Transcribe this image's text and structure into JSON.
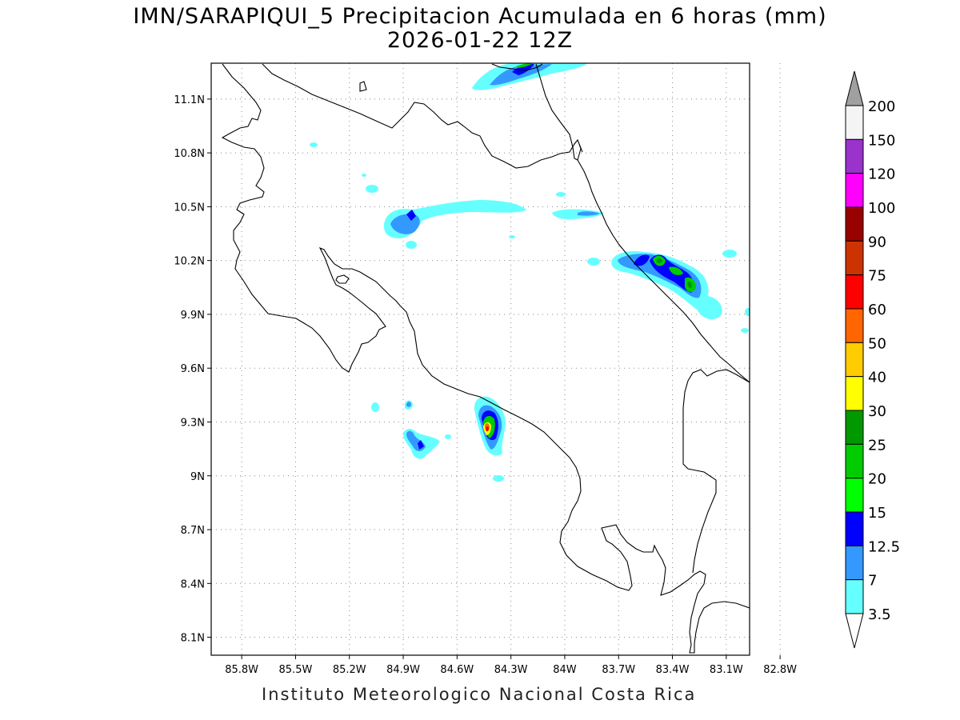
{
  "title": {
    "line1": "IMN/SARAPIQUI_5 Precipitacion Acumulada en 6 horas (mm)",
    "line2": "2026-01-22 12Z"
  },
  "footer": "Instituto Meteorologico Nacional Costa Rica",
  "axes": {
    "lon_labels": [
      "85.8W",
      "85.5W",
      "85.2W",
      "84.9W",
      "84.6W",
      "84.3W",
      "84W",
      "83.7W",
      "83.4W",
      "83.1W",
      "82.8W"
    ],
    "lat_labels": [
      "11.1N",
      "10.8N",
      "10.5N",
      "10.2N",
      "9.9N",
      "9.6N",
      "9.3N",
      "9N",
      "8.7N",
      "8.4N",
      "8.1N"
    ],
    "lon_values": [
      -85.8,
      -85.5,
      -85.2,
      -84.9,
      -84.6,
      -84.3,
      -84.0,
      -83.7,
      -83.4,
      -83.1,
      -82.8
    ],
    "lat_values": [
      11.1,
      10.8,
      10.5,
      10.2,
      9.9,
      9.6,
      9.3,
      9.0,
      8.7,
      8.4,
      8.1
    ],
    "lon_range": [
      -85.97,
      -82.97
    ],
    "lat_range": [
      8.0,
      11.3
    ],
    "grid": "dotted"
  },
  "legend": {
    "labels": [
      "200",
      "150",
      "120",
      "100",
      "90",
      "75",
      "60",
      "50",
      "40",
      "30",
      "25",
      "20",
      "15",
      "12.5",
      "7",
      "3.5"
    ],
    "colors": [
      "#f4f4f4",
      "#9933cc",
      "#ff00ff",
      "#990000",
      "#cc3300",
      "#ff0000",
      "#ff6600",
      "#ffcc00",
      "#ffff00",
      "#009900",
      "#00cc00",
      "#00ff00",
      "#0000ff",
      "#3399ff",
      "#66ffff"
    ],
    "top_arrow_color": "#a0a0a0",
    "bottom_arrow_color": "#ffffff"
  }
}
